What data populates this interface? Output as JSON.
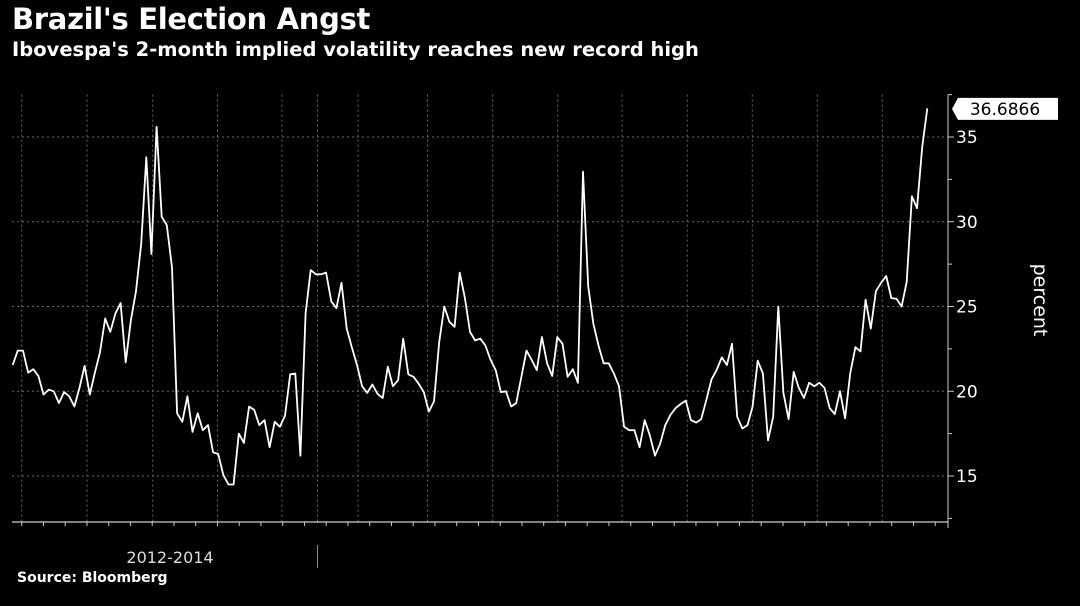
{
  "header": {
    "title": "Brazil's Election Angst",
    "subtitle": "Ibovespa's 2-month implied volatility reaches new record high"
  },
  "footer": {
    "source": "Source: Bloomberg"
  },
  "colors": {
    "background": "#000000",
    "line": "#ffffff",
    "grid": "#5a5a5a",
    "text": "#ffffff",
    "label_bg": "#ffffff",
    "label_text": "#000000"
  },
  "chart_data": {
    "type": "line",
    "title": "Brazil's Election Angst",
    "subtitle": "Ibovespa's 2-month implied volatility reaches new record high",
    "ylabel": "percent",
    "ylim": [
      12.5,
      37.5
    ],
    "y_ticks": [
      15,
      20,
      25,
      30,
      35
    ],
    "y_axis_position": "right",
    "grid": true,
    "x_labels": [
      "2012-2014"
    ],
    "last_value_label": "36.6866",
    "series": [
      {
        "values": [
          21.55,
          22.4,
          22.4,
          21.1,
          21.3,
          20.9,
          19.8,
          20.1,
          20.0,
          19.3,
          19.95,
          19.7,
          19.1,
          20.2,
          21.5,
          19.8,
          21.1,
          22.3,
          24.3,
          23.5,
          24.6,
          25.2,
          21.7,
          24.2,
          25.9,
          28.7,
          33.8,
          28.1,
          35.6,
          30.3,
          29.8,
          27.3,
          18.7,
          18.2,
          19.7,
          17.6,
          18.7,
          17.7,
          18.0,
          16.4,
          16.3,
          15.05,
          14.5,
          14.5,
          17.5,
          16.95,
          19.1,
          18.9,
          18.0,
          18.3,
          16.7,
          18.2,
          17.9,
          18.55,
          21.0,
          21.05,
          16.2,
          24.6,
          27.15,
          26.9,
          26.9,
          27.0,
          25.3,
          24.9,
          26.4,
          23.7,
          22.6,
          21.55,
          20.3,
          19.9,
          20.4,
          19.85,
          19.6,
          21.45,
          20.3,
          20.65,
          23.1,
          21.0,
          20.85,
          20.45,
          19.95,
          18.8,
          19.4,
          22.9,
          25.0,
          24.1,
          23.8,
          27.0,
          25.5,
          23.5,
          23.0,
          23.1,
          22.7,
          21.85,
          21.25,
          19.95,
          20.0,
          19.1,
          19.3,
          20.85,
          22.4,
          21.85,
          21.25,
          23.2,
          21.65,
          20.9,
          23.2,
          22.8,
          20.85,
          21.3,
          20.5,
          32.95,
          26.2,
          24.0,
          22.7,
          21.65,
          21.65,
          21.05,
          20.3,
          17.9,
          17.7,
          17.7,
          16.7,
          18.3,
          17.4,
          16.2,
          16.9,
          18.0,
          18.6,
          19.0,
          19.25,
          19.45,
          18.3,
          18.15,
          18.35,
          19.5,
          20.7,
          21.25,
          22.0,
          21.55,
          22.8,
          18.5,
          17.8,
          18.0,
          19.1,
          21.8,
          21.05,
          17.1,
          18.5,
          25.0,
          19.9,
          18.35,
          21.15,
          20.2,
          19.6,
          20.5,
          20.3,
          20.5,
          20.2,
          19.0,
          18.65,
          20.0,
          18.4,
          21.05,
          22.6,
          22.35,
          25.4,
          23.7,
          25.9,
          26.4,
          26.8,
          25.5,
          25.45,
          25.0,
          26.45,
          31.5,
          30.8,
          34.4,
          36.6866
        ]
      }
    ]
  }
}
